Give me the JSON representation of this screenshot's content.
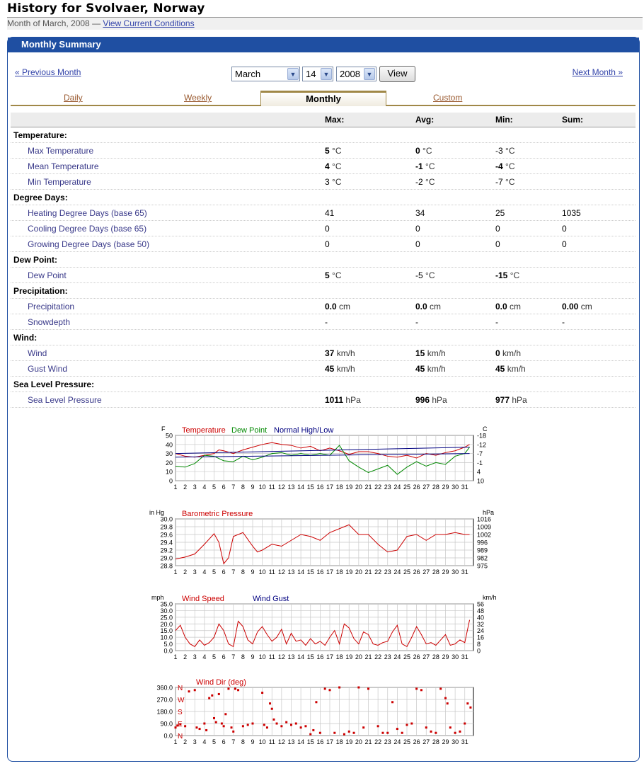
{
  "page": {
    "title": "History for Svolvaer, Norway",
    "subtitle": "Month of March, 2008 —",
    "current_link": "View Current Conditions"
  },
  "panel": {
    "header": "Monthly Summary",
    "prev_month": "« Previous Month",
    "next_month": "Next Month »",
    "month_select": "March",
    "day_select": "14",
    "year_select": "2008",
    "view_button": "View"
  },
  "tabs": [
    "Daily",
    "Weekly",
    "Monthly",
    "Custom"
  ],
  "table": {
    "columns": [
      "Max:",
      "Avg:",
      "Min:",
      "Sum:"
    ],
    "rows": [
      {
        "type": "section",
        "label": "Temperature:"
      },
      {
        "type": "data",
        "label": "Max Temperature",
        "cells": [
          [
            "5",
            "°C"
          ],
          [
            "0",
            "°C"
          ],
          [
            "-3",
            "°C"
          ],
          [
            "",
            ""
          ]
        ],
        "bold": [
          true,
          true,
          false,
          false
        ]
      },
      {
        "type": "data",
        "label": "Mean Temperature",
        "cells": [
          [
            "4",
            "°C"
          ],
          [
            "-1",
            "°C"
          ],
          [
            "-4",
            "°C"
          ],
          [
            "",
            ""
          ]
        ],
        "bold": [
          true,
          true,
          true,
          false
        ]
      },
      {
        "type": "data",
        "label": "Min Temperature",
        "cells": [
          [
            "3",
            "°C"
          ],
          [
            "-2",
            "°C"
          ],
          [
            "-7",
            "°C"
          ],
          [
            "",
            ""
          ]
        ],
        "bold": [
          false,
          false,
          false,
          false
        ]
      },
      {
        "type": "section",
        "label": "Degree Days:"
      },
      {
        "type": "data",
        "label": "Heating Degree Days (base 65)",
        "cells": [
          [
            "41",
            ""
          ],
          [
            "34",
            ""
          ],
          [
            "25",
            ""
          ],
          [
            "1035",
            ""
          ]
        ],
        "bold": [
          false,
          false,
          false,
          false
        ]
      },
      {
        "type": "data",
        "label": "Cooling Degree Days (base 65)",
        "cells": [
          [
            "0",
            ""
          ],
          [
            "0",
            ""
          ],
          [
            "0",
            ""
          ],
          [
            "0",
            ""
          ]
        ],
        "bold": [
          false,
          false,
          false,
          false
        ]
      },
      {
        "type": "data",
        "label": "Growing Degree Days (base 50)",
        "cells": [
          [
            "0",
            ""
          ],
          [
            "0",
            ""
          ],
          [
            "0",
            ""
          ],
          [
            "0",
            ""
          ]
        ],
        "bold": [
          false,
          false,
          false,
          false
        ]
      },
      {
        "type": "section",
        "label": "Dew Point:"
      },
      {
        "type": "data",
        "label": "Dew Point",
        "cells": [
          [
            "5",
            "°C"
          ],
          [
            "-5",
            "°C"
          ],
          [
            "-15",
            "°C"
          ],
          [
            "",
            ""
          ]
        ],
        "bold": [
          true,
          false,
          true,
          false
        ]
      },
      {
        "type": "section",
        "label": "Precipitation:"
      },
      {
        "type": "data",
        "label": "Precipitation",
        "cells": [
          [
            "0.0",
            "cm"
          ],
          [
            "0.0",
            "cm"
          ],
          [
            "0.0",
            "cm"
          ],
          [
            "0.00",
            "cm"
          ]
        ],
        "bold": [
          true,
          true,
          true,
          true
        ]
      },
      {
        "type": "data",
        "label": "Snowdepth",
        "cells": [
          [
            "-",
            ""
          ],
          [
            "-",
            ""
          ],
          [
            "-",
            ""
          ],
          [
            "-",
            ""
          ]
        ],
        "bold": [
          false,
          false,
          false,
          false
        ]
      },
      {
        "type": "section",
        "label": "Wind:"
      },
      {
        "type": "data",
        "label": "Wind",
        "cells": [
          [
            "37",
            "km/h"
          ],
          [
            "15",
            "km/h"
          ],
          [
            "0",
            "km/h"
          ],
          [
            "",
            ""
          ]
        ],
        "bold": [
          true,
          true,
          true,
          false
        ]
      },
      {
        "type": "data",
        "label": "Gust Wind",
        "cells": [
          [
            "45",
            "km/h"
          ],
          [
            "45",
            "km/h"
          ],
          [
            "45",
            "km/h"
          ],
          [
            "",
            ""
          ]
        ],
        "bold": [
          true,
          true,
          true,
          false
        ]
      },
      {
        "type": "section",
        "label": "Sea Level Pressure:"
      },
      {
        "type": "data",
        "label": "Sea Level Pressure",
        "cells": [
          [
            "1011",
            "hPa"
          ],
          [
            "996",
            "hPa"
          ],
          [
            "977",
            "hPa"
          ],
          [
            "",
            ""
          ]
        ],
        "bold": [
          true,
          true,
          true,
          false
        ]
      }
    ]
  },
  "colors": {
    "panel_blue": "#1f4fa2",
    "tab_gold": "#a08848",
    "series_red": "#cc0000",
    "series_green": "#008800",
    "series_navy": "#000080"
  },
  "chart_data": [
    {
      "type": "line",
      "name": "temperature",
      "left_unit": "F",
      "right_unit": "C",
      "legend": [
        "Temperature",
        "Dew Point",
        "Normal High/Low"
      ],
      "y_left": [
        0,
        10,
        20,
        30,
        40,
        50
      ],
      "y_right": [
        "10",
        "4",
        "-1",
        "-7",
        "-12",
        "-18"
      ],
      "ylim": [
        0,
        50
      ],
      "x_ticks": [
        "1",
        "2",
        "3",
        "4",
        "5",
        "6",
        "7",
        "8",
        "9",
        "10",
        "11",
        "12",
        "13",
        "14",
        "15",
        "16",
        "17",
        "18",
        "19",
        "20",
        "21",
        "22",
        "23",
        "24",
        "25",
        "26",
        "27",
        "28",
        "29",
        "30",
        "31"
      ],
      "series": [
        {
          "name": "Temperature",
          "color": "#cc0000",
          "x": [
            1,
            2,
            3,
            4,
            5,
            5.5,
            6,
            7,
            8,
            9,
            10,
            11,
            12,
            13,
            14,
            15,
            16,
            17,
            18,
            19,
            20,
            21,
            22,
            23,
            24,
            25,
            26,
            27,
            28,
            29,
            30,
            31,
            31.5
          ],
          "values": [
            30,
            27,
            26,
            28,
            30,
            34,
            33,
            30,
            34,
            37,
            40,
            42,
            40,
            39,
            36,
            38,
            33,
            36,
            33,
            29,
            32,
            32,
            30,
            27,
            26,
            28,
            25,
            30,
            28,
            31,
            33,
            37,
            40
          ]
        },
        {
          "name": "Dew Point",
          "color": "#008800",
          "x": [
            1,
            2,
            3,
            4,
            5,
            6,
            7,
            8,
            9,
            10,
            11,
            12,
            13,
            14,
            15,
            16,
            17,
            18,
            19,
            20,
            21,
            22,
            23,
            24,
            25,
            26,
            27,
            28,
            29,
            30,
            31,
            31.5
          ],
          "values": [
            16,
            15,
            19,
            28,
            27,
            22,
            21,
            27,
            23,
            26,
            30,
            31,
            28,
            30,
            28,
            30,
            28,
            39,
            22,
            15,
            9,
            13,
            17,
            7,
            15,
            21,
            16,
            20,
            18,
            27,
            30,
            37
          ]
        },
        {
          "name": "High",
          "color": "#000080",
          "x": [
            1,
            31.5
          ],
          "values": [
            30,
            37
          ]
        },
        {
          "name": "Low",
          "color": "#000080",
          "x": [
            1,
            31.5
          ],
          "values": [
            26,
            30
          ]
        }
      ]
    },
    {
      "type": "line",
      "name": "pressure",
      "left_unit": "in Hg",
      "right_unit": "hPa",
      "legend": [
        "Barometric Pressure"
      ],
      "y_left": [
        "28.8",
        "29.0",
        "29.2",
        "29.4",
        "29.6",
        "29.8",
        "30.0"
      ],
      "y_right": [
        "975",
        "982",
        "989",
        "996",
        "1002",
        "1009",
        "1016"
      ],
      "ylim": [
        28.8,
        30.0
      ],
      "x_ticks": [
        "1",
        "2",
        "3",
        "4",
        "5",
        "6",
        "7",
        "8",
        "9",
        "10",
        "11",
        "12",
        "13",
        "14",
        "15",
        "16",
        "17",
        "18",
        "19",
        "20",
        "21",
        "22",
        "23",
        "24",
        "25",
        "26",
        "27",
        "28",
        "29",
        "30",
        "31"
      ],
      "series": [
        {
          "name": "Barometric Pressure",
          "color": "#cc0000",
          "x": [
            1,
            2,
            3,
            4,
            5,
            5.5,
            6,
            6.5,
            7,
            8,
            9,
            9.5,
            10,
            11,
            12,
            13,
            14,
            15,
            16,
            17,
            18,
            19,
            20,
            21,
            22,
            23,
            24,
            25,
            26,
            27,
            28,
            29,
            30,
            31,
            31.5
          ],
          "values": [
            28.97,
            29.02,
            29.1,
            29.35,
            29.62,
            29.4,
            28.85,
            29.0,
            29.55,
            29.65,
            29.3,
            29.15,
            29.2,
            29.35,
            29.3,
            29.45,
            29.6,
            29.55,
            29.45,
            29.65,
            29.75,
            29.85,
            29.6,
            29.6,
            29.35,
            29.15,
            29.2,
            29.55,
            29.6,
            29.45,
            29.6,
            29.6,
            29.65,
            29.6,
            29.6
          ]
        }
      ]
    },
    {
      "type": "line",
      "name": "wind",
      "left_unit": "mph",
      "right_unit": "km/h",
      "legend": [
        "Wind Speed",
        "Wind Gust"
      ],
      "y_left": [
        "0.0",
        "5.0",
        "10.0",
        "15.0",
        "20.0",
        "25.0",
        "30.0",
        "35.0"
      ],
      "y_right": [
        "0",
        "8",
        "16",
        "24",
        "32",
        "40",
        "48",
        "56"
      ],
      "ylim": [
        0,
        35
      ],
      "x_ticks": [
        "1",
        "2",
        "3",
        "4",
        "5",
        "6",
        "7",
        "8",
        "9",
        "10",
        "11",
        "12",
        "13",
        "14",
        "15",
        "16",
        "17",
        "18",
        "19",
        "20",
        "21",
        "22",
        "23",
        "24",
        "25",
        "26",
        "27",
        "28",
        "29",
        "30",
        "31"
      ],
      "series": [
        {
          "name": "Wind Speed",
          "color": "#cc0000",
          "x": [
            1,
            1.5,
            2,
            2.5,
            3,
            3.5,
            4,
            4.5,
            5,
            5.5,
            6,
            6.5,
            7,
            7.5,
            8,
            8.5,
            9,
            9.5,
            10,
            10.5,
            11,
            11.5,
            12,
            12.5,
            13,
            13.5,
            14,
            14.5,
            15,
            15.5,
            16,
            16.5,
            17,
            17.5,
            18,
            18.5,
            19,
            19.5,
            20,
            20.5,
            21,
            21.5,
            22,
            22.5,
            23,
            23.5,
            24,
            24.5,
            25,
            25.5,
            26,
            26.5,
            27,
            27.5,
            28,
            28.5,
            29,
            29.5,
            30,
            30.5,
            31,
            31.5
          ],
          "values": [
            15,
            19,
            10,
            5,
            3,
            8,
            4,
            6,
            10,
            20,
            15,
            5,
            3,
            22,
            18,
            8,
            5,
            14,
            18,
            12,
            7,
            10,
            16,
            5,
            13,
            7,
            8,
            4,
            9,
            5,
            7,
            4,
            10,
            15,
            5,
            20,
            17,
            9,
            5,
            14,
            12,
            5,
            4,
            6,
            7,
            14,
            19,
            5,
            3,
            10,
            18,
            12,
            5,
            6,
            4,
            8,
            12,
            4,
            5,
            8,
            6,
            23
          ]
        }
      ]
    },
    {
      "type": "scatter",
      "name": "wind_dir",
      "legend": [
        "Wind Dir (deg)"
      ],
      "y_left": [
        "0.0",
        "90.0",
        "180.0",
        "270.0",
        "360.0"
      ],
      "y_compass": [
        "N",
        "E",
        "S",
        "W",
        "N"
      ],
      "ylim": [
        0,
        360
      ],
      "x_ticks": [
        "1",
        "2",
        "3",
        "4",
        "5",
        "6",
        "7",
        "8",
        "9",
        "10",
        "11",
        "12",
        "13",
        "14",
        "15",
        "16",
        "17",
        "18",
        "19",
        "20",
        "21",
        "22",
        "23",
        "24",
        "25",
        "26",
        "27",
        "28",
        "29",
        "30",
        "31"
      ],
      "series": [
        {
          "name": "Wind Dir",
          "color": "#cc0000",
          "x": [
            1,
            1.2,
            1.5,
            2,
            2.4,
            3,
            3.2,
            3.5,
            4,
            4.2,
            4.5,
            4.8,
            5,
            5.2,
            5.5,
            5.8,
            6,
            6.2,
            6.5,
            6.8,
            7,
            7.2,
            7.5,
            8,
            8.5,
            9,
            10,
            10.2,
            10.5,
            10.8,
            11,
            11.2,
            11.5,
            12,
            12.5,
            13,
            13.5,
            14,
            14.5,
            15,
            15.3,
            15.6,
            16,
            16.5,
            17,
            17.5,
            18,
            18.5,
            19,
            19.5,
            20,
            20.5,
            21,
            22,
            22.5,
            23,
            23.5,
            24,
            24.5,
            25,
            25.5,
            26,
            26.5,
            27,
            27.5,
            28,
            28.5,
            29,
            29.2,
            29.5,
            30,
            30.5,
            31,
            31.3,
            31.6
          ],
          "values": [
            60,
            75,
            85,
            70,
            330,
            340,
            60,
            50,
            90,
            40,
            280,
            300,
            130,
            100,
            310,
            90,
            70,
            160,
            350,
            60,
            30,
            350,
            340,
            70,
            80,
            90,
            320,
            80,
            60,
            240,
            200,
            120,
            90,
            70,
            100,
            80,
            90,
            60,
            70,
            10,
            40,
            250,
            20,
            350,
            340,
            20,
            360,
            10,
            30,
            20,
            360,
            60,
            350,
            70,
            20,
            20,
            250,
            50,
            20,
            80,
            90,
            350,
            340,
            60,
            30,
            20,
            350,
            280,
            240,
            60,
            20,
            30,
            90,
            240,
            210
          ]
        }
      ]
    }
  ]
}
